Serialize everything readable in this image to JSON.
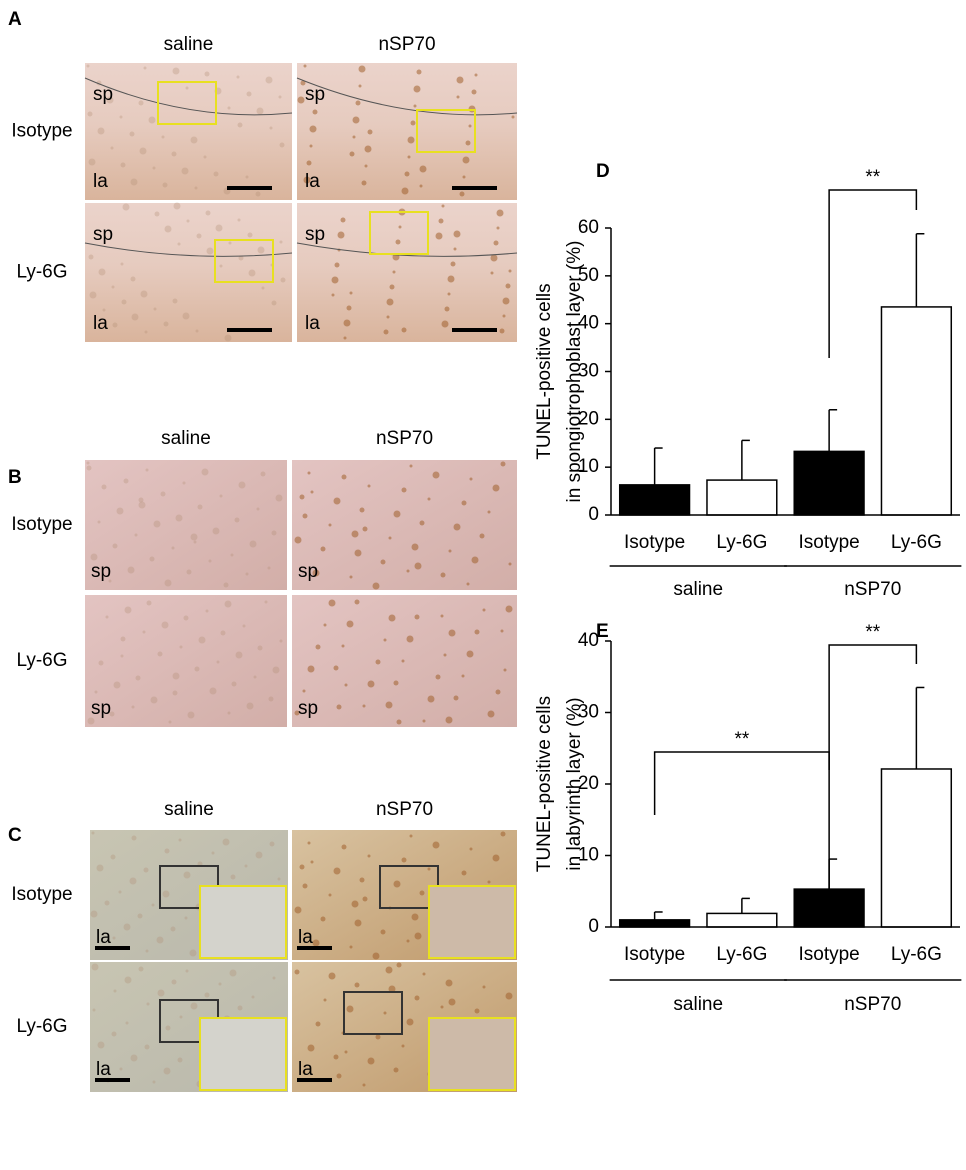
{
  "panels": [
    {
      "label": "A",
      "columns": [
        "saline",
        "nSP70"
      ],
      "rows": [
        "Isotype",
        "Ly-6G"
      ],
      "image_labels": [
        [
          "sp",
          "la"
        ],
        [
          "sp",
          "la"
        ],
        [
          "sp",
          "la"
        ],
        [
          "sp",
          "la"
        ]
      ]
    },
    {
      "label": "B",
      "columns": [
        "saline",
        "nSP70"
      ],
      "rows": [
        "Isotype",
        "Ly-6G"
      ],
      "image_labels": [
        [
          "sp"
        ],
        [
          "sp"
        ],
        [
          "sp"
        ],
        [
          "sp"
        ]
      ]
    },
    {
      "label": "C",
      "columns": [
        "saline",
        "nSP70"
      ],
      "rows": [
        "Isotype",
        "Ly-6G"
      ],
      "image_labels": [
        [
          "la"
        ],
        [
          "la"
        ],
        [
          "la"
        ],
        [
          "la"
        ]
      ]
    }
  ],
  "chart_data": [
    {
      "type": "bar",
      "panel_label": "D",
      "ylabel": [
        "TUNEL-positive cells",
        "in spongiotrophoblast layer (%)"
      ],
      "categories": [
        "Isotype",
        "Ly-6G",
        "Isotype",
        "Ly-6G"
      ],
      "groups": [
        "saline",
        "nSP70"
      ],
      "values": [
        6.3,
        7.3,
        13.3,
        43.5
      ],
      "errors": [
        7.7,
        8.3,
        8.7,
        15.3
      ],
      "colors": [
        "#000000",
        "#ffffff",
        "#000000",
        "#ffffff"
      ],
      "ylim": [
        0,
        60
      ],
      "yticks": [
        0,
        10,
        20,
        30,
        40,
        50,
        60
      ],
      "annotations": [
        "**"
      ]
    },
    {
      "type": "bar",
      "panel_label": "E",
      "ylabel": [
        "TUNEL-positive cells",
        "in labyrinth layer (%)"
      ],
      "categories": [
        "Isotype",
        "Ly-6G",
        "Isotype",
        "Ly-6G"
      ],
      "groups": [
        "saline",
        "nSP70"
      ],
      "values": [
        1.0,
        1.9,
        5.3,
        22.1
      ],
      "errors": [
        1.1,
        2.1,
        4.2,
        11.4
      ],
      "colors": [
        "#000000",
        "#ffffff",
        "#000000",
        "#ffffff"
      ],
      "ylim": [
        0,
        40
      ],
      "yticks": [
        0,
        10,
        20,
        30,
        40
      ],
      "annotations": [
        "**",
        "**"
      ]
    }
  ]
}
